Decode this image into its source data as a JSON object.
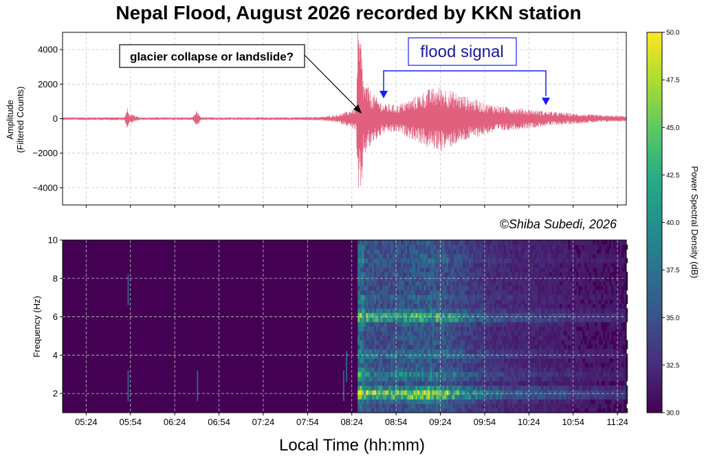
{
  "title": "Nepal Flood, August 2026 recorded by KKN station",
  "credit": "©Shiba Subedi, 2026",
  "xlabel": "Local Time (hh:mm)",
  "colors": {
    "waveform": "#e0607e",
    "annotation_arrow": "#1a1aff",
    "annotation_text": "#1a1a9c"
  },
  "chart_data": [
    {
      "type": "line",
      "panel": "top",
      "ylabel_line1": "Amplitude",
      "ylabel_line2": "(Filtered Counts)",
      "ylim": [
        -5000,
        5000
      ],
      "yticks": [
        4000,
        2000,
        0,
        -2000,
        -4000
      ],
      "ytick_labels": [
        "4000",
        "2000",
        "0",
        "−2000",
        "−4000"
      ],
      "grid": true,
      "envelope_time_hhmm": [
        "05:08",
        "05:50",
        "05:52",
        "05:53",
        "06:00",
        "06:06",
        "06:36",
        "06:39",
        "06:42",
        "07:00",
        "07:30",
        "07:50",
        "08:05",
        "08:15",
        "08:20",
        "08:27",
        "08:28",
        "08:30",
        "08:32",
        "08:34",
        "08:38",
        "08:45",
        "08:55",
        "09:05",
        "09:15",
        "09:25",
        "09:35",
        "09:45",
        "09:55",
        "10:05",
        "10:15",
        "10:25",
        "10:35",
        "10:45",
        "10:55",
        "11:05",
        "11:15",
        "11:25",
        "11:30"
      ],
      "envelope_amplitude": [
        80,
        90,
        650,
        300,
        90,
        80,
        80,
        450,
        80,
        80,
        80,
        90,
        120,
        250,
        400,
        700,
        5000,
        5000,
        2200,
        2000,
        1500,
        900,
        800,
        1200,
        1700,
        1900,
        1500,
        1200,
        900,
        750,
        650,
        550,
        450,
        370,
        300,
        250,
        200,
        170,
        150
      ],
      "annotations": [
        {
          "text": "glacier collapse or landslide?",
          "target_time": "08:28",
          "target_value": 200
        },
        {
          "text": "flood signal",
          "bracket_start": "08:43",
          "bracket_end": "10:50"
        }
      ]
    },
    {
      "type": "heatmap",
      "panel": "bottom",
      "ylabel": "Frequency (Hz)",
      "ylim": [
        1,
        10
      ],
      "yticks": [
        10,
        8,
        6,
        4,
        2
      ],
      "xticks": [
        "05:24",
        "05:54",
        "06:24",
        "06:54",
        "07:24",
        "07:54",
        "08:24",
        "08:54",
        "09:24",
        "09:54",
        "10:24",
        "10:54",
        "11:24"
      ],
      "xlim": [
        "05:08",
        "11:30"
      ],
      "grid": true,
      "colormap": "viridis",
      "color_range": [
        30.0,
        50.0
      ],
      "colorbar_label": "Power Spectral Density (dB)",
      "colorbar_ticks": [
        "50.0",
        "47.5",
        "45.0",
        "42.5",
        "40.0",
        "37.5",
        "35.0",
        "32.5",
        "30.0"
      ],
      "band_strength_hz": {
        "2": 1.0,
        "6": 0.85,
        "3": 0.6,
        "4": 0.55,
        "7": 0.45,
        "9": 0.45
      },
      "onset_time": "08:28",
      "decay_end_time": "11:30"
    }
  ]
}
